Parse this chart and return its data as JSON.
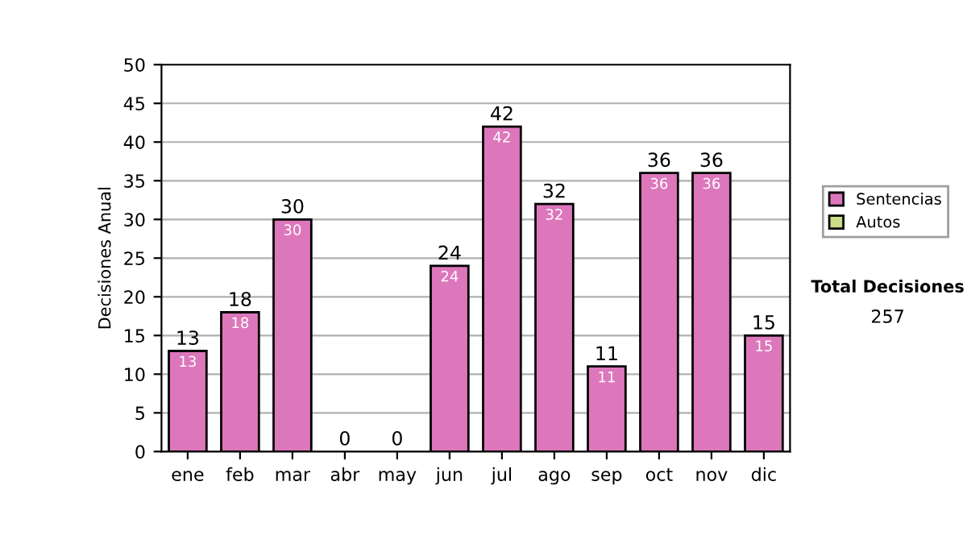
{
  "chart_data": {
    "type": "bar",
    "stacked": true,
    "categories": [
      "ene",
      "feb",
      "mar",
      "abr",
      "may",
      "jun",
      "jul",
      "ago",
      "sep",
      "oct",
      "nov",
      "dic"
    ],
    "series": [
      {
        "name": "Sentencias",
        "color": "#dd77bb",
        "values": [
          13,
          18,
          30,
          0,
          0,
          24,
          42,
          32,
          11,
          36,
          36,
          15
        ],
        "value_labels": [
          "13",
          "18",
          "30",
          null,
          null,
          "24",
          "42",
          "32",
          "11",
          "36",
          "36",
          "15"
        ]
      },
      {
        "name": "Autos",
        "color": "#ccdd88",
        "values": [
          0,
          0,
          0,
          0,
          0,
          0,
          0,
          0,
          0,
          0,
          0,
          0
        ]
      }
    ],
    "totals": [
      "13",
      "18",
      "30",
      "0",
      "0",
      "24",
      "42",
      "32",
      "11",
      "36",
      "36",
      "15"
    ],
    "ylabel": "Decisiones Anual",
    "ylim": [
      0,
      50
    ],
    "yticks": [
      0,
      5,
      10,
      15,
      20,
      25,
      30,
      35,
      40,
      45,
      50
    ],
    "grid": "y",
    "legend": "right",
    "annotations": [
      "Total Decisiones",
      "257"
    ]
  }
}
